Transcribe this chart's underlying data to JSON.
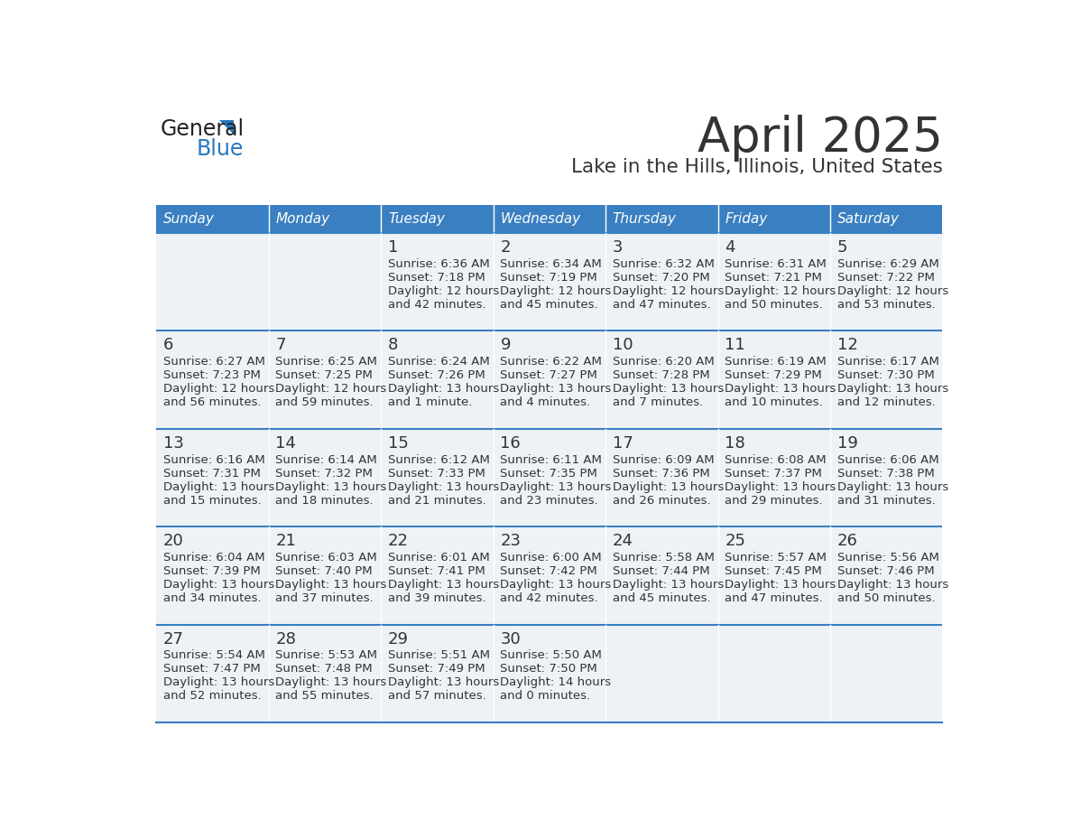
{
  "title": "April 2025",
  "subtitle": "Lake in the Hills, Illinois, United States",
  "header_color": "#3a7fc1",
  "header_text_color": "#ffffff",
  "cell_bg_color": "#eef2f7",
  "border_color": "#3a7fc1",
  "text_color": "#333333",
  "days_of_week": [
    "Sunday",
    "Monday",
    "Tuesday",
    "Wednesday",
    "Thursday",
    "Friday",
    "Saturday"
  ],
  "calendar": [
    [
      {
        "day": "",
        "sunrise": "",
        "sunset": "",
        "daylight_h": "",
        "daylight_m": ""
      },
      {
        "day": "",
        "sunrise": "",
        "sunset": "",
        "daylight_h": "",
        "daylight_m": ""
      },
      {
        "day": "1",
        "sunrise": "6:36 AM",
        "sunset": "7:18 PM",
        "daylight_h": "12 hours",
        "daylight_m": "and 42 minutes."
      },
      {
        "day": "2",
        "sunrise": "6:34 AM",
        "sunset": "7:19 PM",
        "daylight_h": "12 hours",
        "daylight_m": "and 45 minutes."
      },
      {
        "day": "3",
        "sunrise": "6:32 AM",
        "sunset": "7:20 PM",
        "daylight_h": "12 hours",
        "daylight_m": "and 47 minutes."
      },
      {
        "day": "4",
        "sunrise": "6:31 AM",
        "sunset": "7:21 PM",
        "daylight_h": "12 hours",
        "daylight_m": "and 50 minutes."
      },
      {
        "day": "5",
        "sunrise": "6:29 AM",
        "sunset": "7:22 PM",
        "daylight_h": "12 hours",
        "daylight_m": "and 53 minutes."
      }
    ],
    [
      {
        "day": "6",
        "sunrise": "6:27 AM",
        "sunset": "7:23 PM",
        "daylight_h": "12 hours",
        "daylight_m": "and 56 minutes."
      },
      {
        "day": "7",
        "sunrise": "6:25 AM",
        "sunset": "7:25 PM",
        "daylight_h": "12 hours",
        "daylight_m": "and 59 minutes."
      },
      {
        "day": "8",
        "sunrise": "6:24 AM",
        "sunset": "7:26 PM",
        "daylight_h": "13 hours",
        "daylight_m": "and 1 minute."
      },
      {
        "day": "9",
        "sunrise": "6:22 AM",
        "sunset": "7:27 PM",
        "daylight_h": "13 hours",
        "daylight_m": "and 4 minutes."
      },
      {
        "day": "10",
        "sunrise": "6:20 AM",
        "sunset": "7:28 PM",
        "daylight_h": "13 hours",
        "daylight_m": "and 7 minutes."
      },
      {
        "day": "11",
        "sunrise": "6:19 AM",
        "sunset": "7:29 PM",
        "daylight_h": "13 hours",
        "daylight_m": "and 10 minutes."
      },
      {
        "day": "12",
        "sunrise": "6:17 AM",
        "sunset": "7:30 PM",
        "daylight_h": "13 hours",
        "daylight_m": "and 12 minutes."
      }
    ],
    [
      {
        "day": "13",
        "sunrise": "6:16 AM",
        "sunset": "7:31 PM",
        "daylight_h": "13 hours",
        "daylight_m": "and 15 minutes."
      },
      {
        "day": "14",
        "sunrise": "6:14 AM",
        "sunset": "7:32 PM",
        "daylight_h": "13 hours",
        "daylight_m": "and 18 minutes."
      },
      {
        "day": "15",
        "sunrise": "6:12 AM",
        "sunset": "7:33 PM",
        "daylight_h": "13 hours",
        "daylight_m": "and 21 minutes."
      },
      {
        "day": "16",
        "sunrise": "6:11 AM",
        "sunset": "7:35 PM",
        "daylight_h": "13 hours",
        "daylight_m": "and 23 minutes."
      },
      {
        "day": "17",
        "sunrise": "6:09 AM",
        "sunset": "7:36 PM",
        "daylight_h": "13 hours",
        "daylight_m": "and 26 minutes."
      },
      {
        "day": "18",
        "sunrise": "6:08 AM",
        "sunset": "7:37 PM",
        "daylight_h": "13 hours",
        "daylight_m": "and 29 minutes."
      },
      {
        "day": "19",
        "sunrise": "6:06 AM",
        "sunset": "7:38 PM",
        "daylight_h": "13 hours",
        "daylight_m": "and 31 minutes."
      }
    ],
    [
      {
        "day": "20",
        "sunrise": "6:04 AM",
        "sunset": "7:39 PM",
        "daylight_h": "13 hours",
        "daylight_m": "and 34 minutes."
      },
      {
        "day": "21",
        "sunrise": "6:03 AM",
        "sunset": "7:40 PM",
        "daylight_h": "13 hours",
        "daylight_m": "and 37 minutes."
      },
      {
        "day": "22",
        "sunrise": "6:01 AM",
        "sunset": "7:41 PM",
        "daylight_h": "13 hours",
        "daylight_m": "and 39 minutes."
      },
      {
        "day": "23",
        "sunrise": "6:00 AM",
        "sunset": "7:42 PM",
        "daylight_h": "13 hours",
        "daylight_m": "and 42 minutes."
      },
      {
        "day": "24",
        "sunrise": "5:58 AM",
        "sunset": "7:44 PM",
        "daylight_h": "13 hours",
        "daylight_m": "and 45 minutes."
      },
      {
        "day": "25",
        "sunrise": "5:57 AM",
        "sunset": "7:45 PM",
        "daylight_h": "13 hours",
        "daylight_m": "and 47 minutes."
      },
      {
        "day": "26",
        "sunrise": "5:56 AM",
        "sunset": "7:46 PM",
        "daylight_h": "13 hours",
        "daylight_m": "and 50 minutes."
      }
    ],
    [
      {
        "day": "27",
        "sunrise": "5:54 AM",
        "sunset": "7:47 PM",
        "daylight_h": "13 hours",
        "daylight_m": "and 52 minutes."
      },
      {
        "day": "28",
        "sunrise": "5:53 AM",
        "sunset": "7:48 PM",
        "daylight_h": "13 hours",
        "daylight_m": "and 55 minutes."
      },
      {
        "day": "29",
        "sunrise": "5:51 AM",
        "sunset": "7:49 PM",
        "daylight_h": "13 hours",
        "daylight_m": "and 57 minutes."
      },
      {
        "day": "30",
        "sunrise": "5:50 AM",
        "sunset": "7:50 PM",
        "daylight_h": "14 hours",
        "daylight_m": "and 0 minutes."
      },
      {
        "day": "",
        "sunrise": "",
        "sunset": "",
        "daylight_h": "",
        "daylight_m": ""
      },
      {
        "day": "",
        "sunrise": "",
        "sunset": "",
        "daylight_h": "",
        "daylight_m": ""
      },
      {
        "day": "",
        "sunrise": "",
        "sunset": "",
        "daylight_h": "",
        "daylight_m": ""
      }
    ]
  ],
  "logo_text1": "General",
  "logo_text2": "Blue",
  "logo_color1": "#222222",
  "logo_color2": "#2878be",
  "logo_tri_color": "#2878be"
}
